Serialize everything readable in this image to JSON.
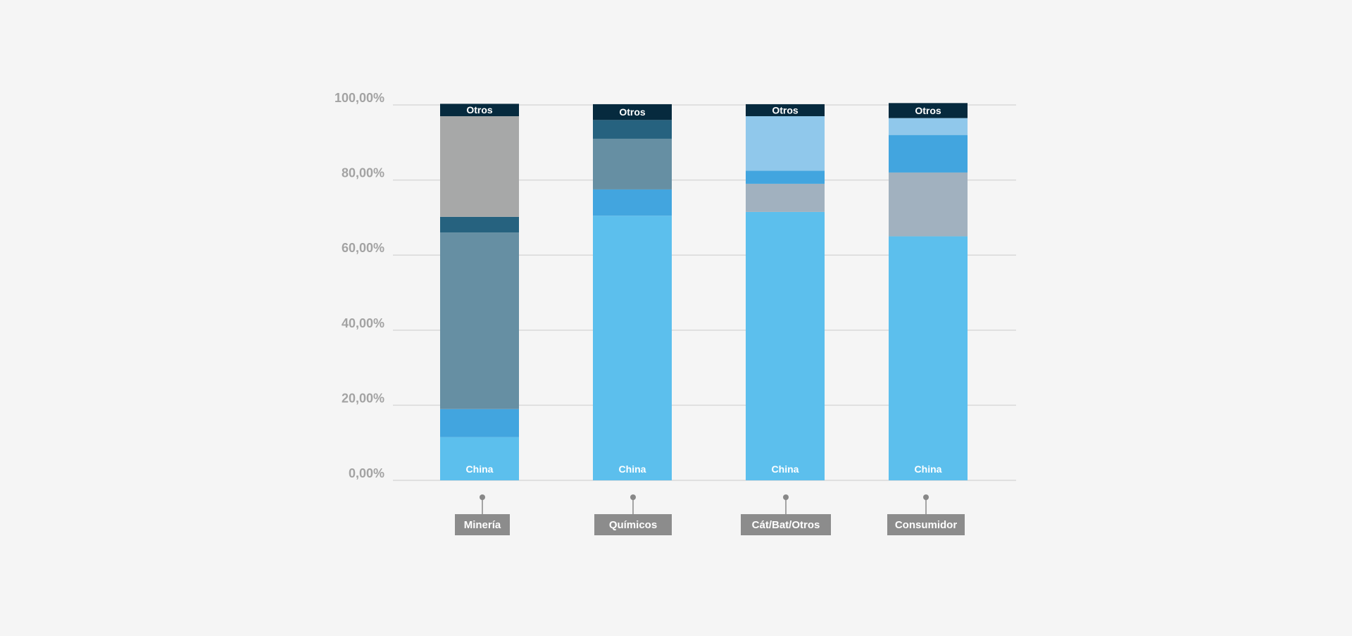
{
  "chart_data": {
    "type": "bar",
    "stacked": true,
    "ylim": [
      0,
      100
    ],
    "yticks": [
      "0,00%",
      "20,00%",
      "40,00%",
      "60,00%",
      "80,00%",
      "100,00%"
    ],
    "grid": true,
    "categories": [
      "Minería",
      "Químicos",
      "Cát/Bat/Otros",
      "Consumidor"
    ],
    "colors": {
      "background": "#f5f5f5",
      "grid": "#d9d9d9",
      "category_box": "#8c8c8c",
      "pin": "#888888",
      "axis_text": "#a3a3a3"
    },
    "bars": [
      {
        "category": "Minería",
        "segments": [
          {
            "value": 11.5,
            "color": "#5cbfed",
            "label": "China"
          },
          {
            "value": 7.5,
            "color": "#42a5df",
            "label": ""
          },
          {
            "value": 47.0,
            "color": "#668fa3",
            "label": ""
          },
          {
            "value": 4.2,
            "color": "#26627f",
            "label": ""
          },
          {
            "value": 26.8,
            "color": "#a7a8a8",
            "label": ""
          },
          {
            "value": 3.3,
            "color": "#062a3e",
            "label": "Otros"
          }
        ]
      },
      {
        "category": "Químicos",
        "segments": [
          {
            "value": 70.5,
            "color": "#5cbfed",
            "label": "China"
          },
          {
            "value": 7.0,
            "color": "#42a5df",
            "label": ""
          },
          {
            "value": 13.5,
            "color": "#668fa3",
            "label": ""
          },
          {
            "value": 5.0,
            "color": "#26627f",
            "label": ""
          },
          {
            "value": 4.2,
            "color": "#062a3e",
            "label": "Otros"
          }
        ]
      },
      {
        "category": "Cát/Bat/Otros",
        "segments": [
          {
            "value": 71.5,
            "color": "#5cbfed",
            "label": "China"
          },
          {
            "value": 7.5,
            "color": "#a1b1bf",
            "label": ""
          },
          {
            "value": 3.5,
            "color": "#42a5df",
            "label": ""
          },
          {
            "value": 14.5,
            "color": "#90c8eb",
            "label": ""
          },
          {
            "value": 3.2,
            "color": "#062a3e",
            "label": "Otros"
          }
        ]
      },
      {
        "category": "Consumidor",
        "segments": [
          {
            "value": 65.0,
            "color": "#5cbfed",
            "label": "China"
          },
          {
            "value": 17.0,
            "color": "#a1b1bf",
            "label": ""
          },
          {
            "value": 10.0,
            "color": "#42a5df",
            "label": ""
          },
          {
            "value": 4.5,
            "color": "#90c8eb",
            "label": ""
          },
          {
            "value": 4.0,
            "color": "#062a3e",
            "label": "Otros"
          }
        ]
      }
    ]
  }
}
